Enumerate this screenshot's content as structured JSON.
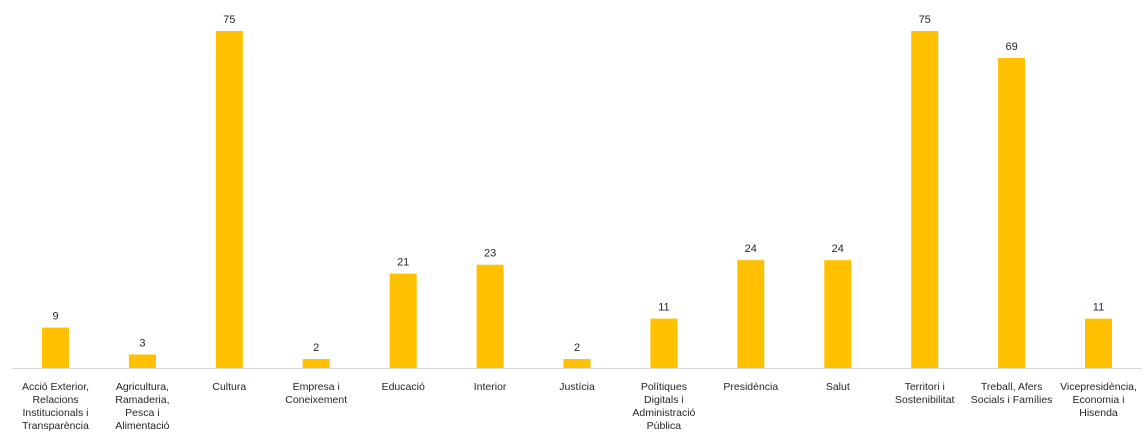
{
  "chart_data": {
    "type": "bar",
    "title": "",
    "xlabel": "",
    "ylabel": "",
    "ylim": [
      0,
      75
    ],
    "grid": false,
    "legend": "none",
    "bar_color": "#FFC000",
    "categories": [
      "Acció Exterior, Relacions Institucionals i Transparència",
      "Agricultura, Ramaderia, Pesca i Alimentació",
      "Cultura",
      "Empresa i Coneixement",
      "Educació",
      "Interior",
      "Justícia",
      "Polítiques Digitals i Administració Pública",
      "Presidència",
      "Salut",
      "Territori i Sostenibilitat",
      "Treball, Afers Socials i Famílies",
      "Vicepresidència, Economia i Hisenda"
    ],
    "category_lines": [
      [
        "Acció Exterior,",
        "Relacions",
        "Institucionals i",
        "Transparència"
      ],
      [
        "Agricultura,",
        "Ramaderia,",
        "Pesca i",
        "Alimentació"
      ],
      [
        "Cultura"
      ],
      [
        "Empresa i",
        "Coneixement"
      ],
      [
        "Educació"
      ],
      [
        "Interior"
      ],
      [
        "Justícia"
      ],
      [
        "Polítiques",
        "Digitals i",
        "Administració",
        "Pública"
      ],
      [
        "Presidència"
      ],
      [
        "Salut"
      ],
      [
        "Territori i",
        "Sostenibilitat"
      ],
      [
        "Treball, Afers",
        "Socials i Famílies"
      ],
      [
        "Vicepresidència,",
        "Economia i",
        "Hisenda"
      ]
    ],
    "values": [
      9,
      3,
      75,
      2,
      21,
      23,
      2,
      11,
      24,
      24,
      75,
      69,
      11
    ]
  }
}
